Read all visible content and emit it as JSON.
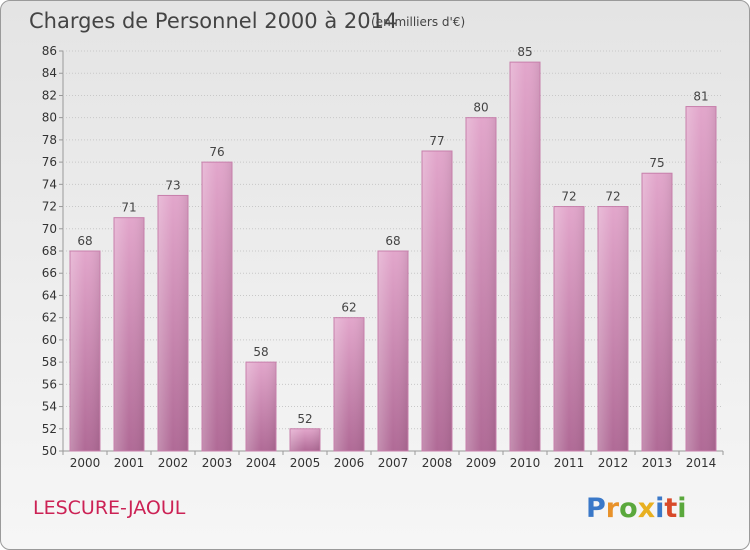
{
  "chart_data": {
    "type": "bar",
    "title": "Charges de Personnel 2000 à 2014",
    "subtitle": "(en milliers d'€)",
    "categories": [
      "2000",
      "2001",
      "2002",
      "2003",
      "2004",
      "2005",
      "2006",
      "2007",
      "2008",
      "2009",
      "2010",
      "2011",
      "2012",
      "2013",
      "2014"
    ],
    "values": [
      68,
      71,
      73,
      76,
      58,
      52,
      62,
      68,
      77,
      80,
      85,
      72,
      72,
      75,
      81
    ],
    "ylim": [
      50,
      86
    ],
    "ytick_step": 2,
    "grid": true,
    "bar_color": "#d889b6",
    "xlabel": "",
    "ylabel": ""
  },
  "commune": "LESCURE-JAOUL",
  "brand": {
    "letters": [
      "P",
      "r",
      "o",
      "x",
      "i",
      "t",
      "i"
    ],
    "colors": [
      "#3a78c8",
      "#e8922a",
      "#5aa83c",
      "#e8b020",
      "#3a78c8",
      "#d84a2a",
      "#5aa83c"
    ]
  }
}
